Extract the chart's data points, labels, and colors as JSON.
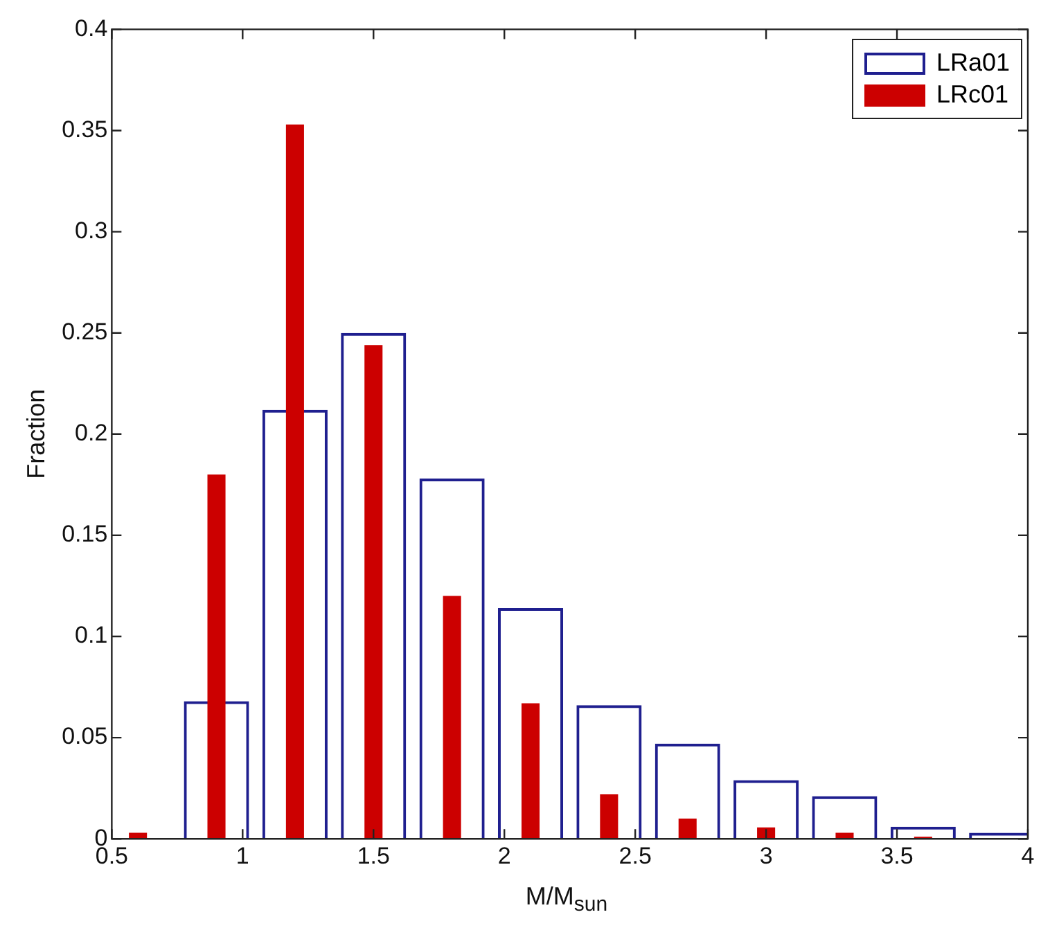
{
  "chart_data": {
    "type": "bar",
    "xlabel": "M/M$_{sun}$",
    "ylabel": "Fraction",
    "x": [
      0.6,
      0.9,
      1.2,
      1.5,
      1.8,
      2.1,
      2.4,
      2.7,
      3.0,
      3.3,
      3.6,
      3.9
    ],
    "series": [
      {
        "name": "LRa01",
        "color": "#1f1f8f",
        "values": [
          null,
          0.068,
          0.212,
          0.25,
          0.178,
          0.114,
          0.066,
          0.047,
          0.029,
          0.021,
          0.006,
          0.003
        ]
      },
      {
        "name": "LRc01",
        "color": "#cc0000",
        "values": [
          0.003,
          0.18,
          0.353,
          0.244,
          0.12,
          0.067,
          0.022,
          0.01,
          0.0056,
          0.003,
          0.001,
          null
        ]
      }
    ],
    "xlim": [
      0.5,
      4
    ],
    "xticks": [
      0.5,
      1,
      1.5,
      2,
      2.5,
      3,
      3.5,
      4
    ],
    "ylim": [
      0,
      0.4
    ],
    "yticks": [
      0,
      0.05,
      0.1,
      0.15,
      0.2,
      0.25,
      0.3,
      0.35,
      0.4
    ],
    "grid": false,
    "legend": "top right"
  }
}
